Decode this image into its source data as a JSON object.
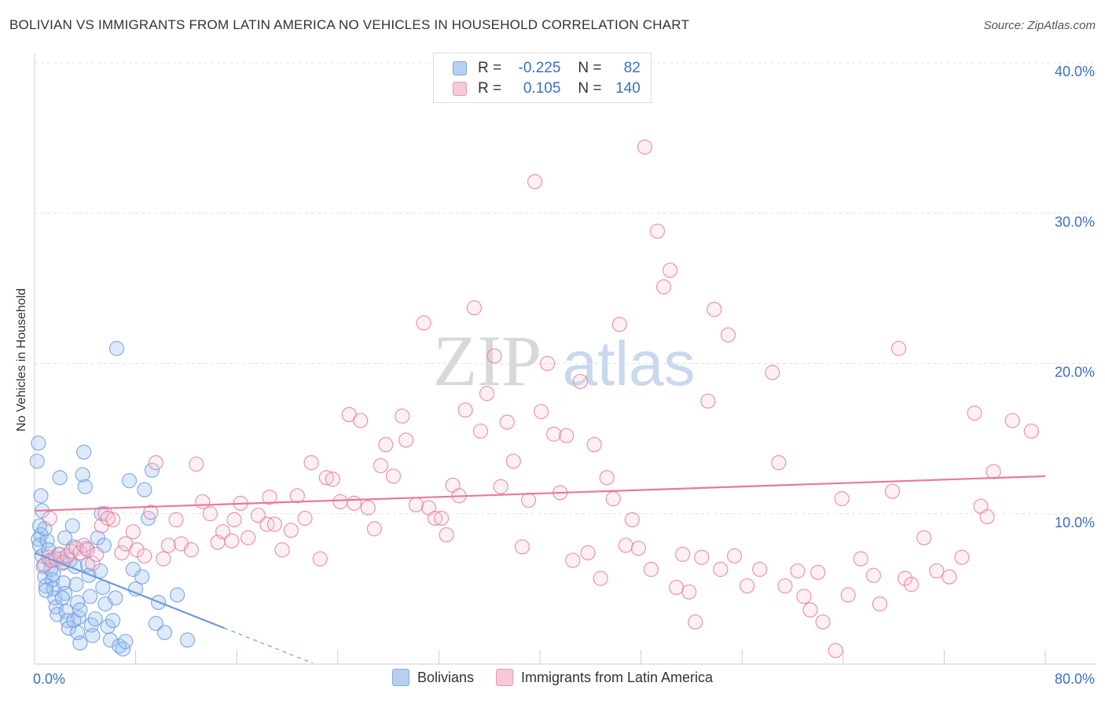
{
  "header": {
    "title": "BOLIVIAN VS IMMIGRANTS FROM LATIN AMERICA NO VEHICLES IN HOUSEHOLD CORRELATION CHART",
    "source": "Source: ZipAtlas.com"
  },
  "watermark": {
    "part1": "ZIP",
    "part2": "atlas"
  },
  "legend": {
    "r_label": "R =",
    "n_label": "N =",
    "rows": [
      {
        "r": "-0.225",
        "n": "82",
        "fill": "#b7d0f0",
        "stroke": "#7fa8e0"
      },
      {
        "r": "0.105",
        "n": "140",
        "fill": "#f8c8d7",
        "stroke": "#e89ab3"
      }
    ]
  },
  "bottom_legend": [
    {
      "label": "Bolivians",
      "fill": "#b7d0f0",
      "stroke": "#7fa8e0"
    },
    {
      "label": "Immigrants from Latin America",
      "fill": "#f8c8d7",
      "stroke": "#e89ab3"
    }
  ],
  "chart_data": {
    "type": "scatter",
    "ylabel": "No Vehicles in Household",
    "xlim": [
      0,
      80
    ],
    "ylim": [
      0,
      40
    ],
    "x_tick_labels": [
      "0.0%",
      "80.0%"
    ],
    "y_ticks": [
      10,
      20,
      30,
      40
    ],
    "y_tick_labels": [
      "10.0%",
      "20.0%",
      "30.0%",
      "40.0%"
    ],
    "grid": true,
    "series": [
      {
        "name": "Bolivians",
        "color": "#6a9bdc",
        "fill": "rgba(160,196,240,0.35)",
        "trend": {
          "x0": 0,
          "y0": 7.4,
          "x1": 15,
          "y1": 2.4,
          "dash_to_x": 22
        },
        "points": [
          [
            0.3,
            14.7
          ],
          [
            0.5,
            11.2
          ],
          [
            0.6,
            10.2
          ],
          [
            0.4,
            9.2
          ],
          [
            0.5,
            8.6
          ],
          [
            0.3,
            8.3
          ],
          [
            0.4,
            7.9
          ],
          [
            0.6,
            7.2
          ],
          [
            0.7,
            6.5
          ],
          [
            0.8,
            5.8
          ],
          [
            0.9,
            5.2
          ],
          [
            1.0,
            8.2
          ],
          [
            1.1,
            7.6
          ],
          [
            1.2,
            6.9
          ],
          [
            1.3,
            6.3
          ],
          [
            1.4,
            5.6
          ],
          [
            1.5,
            5.0
          ],
          [
            1.6,
            4.4
          ],
          [
            1.7,
            3.8
          ],
          [
            1.8,
            3.3
          ],
          [
            2.0,
            12.4
          ],
          [
            2.1,
            7.0
          ],
          [
            2.2,
            6.7
          ],
          [
            2.3,
            5.4
          ],
          [
            2.4,
            4.7
          ],
          [
            2.5,
            3.5
          ],
          [
            2.6,
            2.9
          ],
          [
            2.7,
            2.4
          ],
          [
            3.0,
            9.2
          ],
          [
            3.1,
            7.8
          ],
          [
            3.2,
            6.5
          ],
          [
            3.3,
            5.3
          ],
          [
            3.4,
            4.1
          ],
          [
            3.5,
            3.1
          ],
          [
            3.6,
            1.4
          ],
          [
            3.1,
            2.9
          ],
          [
            2.8,
            6.9
          ],
          [
            1.9,
            7.3
          ],
          [
            2.4,
            8.4
          ],
          [
            0.8,
            9.0
          ],
          [
            3.8,
            12.6
          ],
          [
            3.9,
            14.1
          ],
          [
            4.0,
            11.8
          ],
          [
            4.1,
            7.7
          ],
          [
            4.2,
            6.6
          ],
          [
            4.3,
            5.9
          ],
          [
            4.4,
            4.5
          ],
          [
            4.5,
            2.6
          ],
          [
            4.6,
            1.9
          ],
          [
            5.0,
            8.4
          ],
          [
            5.2,
            6.2
          ],
          [
            5.4,
            5.1
          ],
          [
            5.6,
            4.0
          ],
          [
            5.8,
            2.5
          ],
          [
            6.0,
            1.6
          ],
          [
            5.3,
            10.0
          ],
          [
            5.5,
            7.9
          ],
          [
            6.4,
            4.4
          ],
          [
            6.7,
            1.2
          ],
          [
            7.0,
            1.0
          ],
          [
            6.5,
            21.0
          ],
          [
            7.5,
            12.2
          ],
          [
            7.8,
            6.3
          ],
          [
            8.0,
            5.0
          ],
          [
            8.5,
            5.8
          ],
          [
            9.0,
            9.7
          ],
          [
            9.3,
            12.9
          ],
          [
            9.6,
            2.7
          ],
          [
            9.8,
            4.1
          ],
          [
            8.7,
            11.6
          ],
          [
            11.3,
            4.6
          ],
          [
            10.3,
            2.1
          ],
          [
            12.1,
            1.6
          ],
          [
            3.6,
            3.6
          ],
          [
            4.8,
            3.0
          ],
          [
            1.5,
            6.0
          ],
          [
            2.2,
            4.4
          ],
          [
            0.9,
            4.9
          ],
          [
            3.4,
            2.1
          ],
          [
            6.2,
            2.9
          ],
          [
            7.2,
            1.5
          ],
          [
            0.2,
            13.5
          ]
        ]
      },
      {
        "name": "Immigrants from Latin America",
        "color": "#e8789c",
        "fill": "rgba(248,200,215,0.28)",
        "trend": {
          "x0": 0,
          "y0": 10.2,
          "x1": 80,
          "y1": 12.5
        },
        "points": [
          [
            0.8,
            6.6
          ],
          [
            1.1,
            7.1
          ],
          [
            1.4,
            6.9
          ],
          [
            1.7,
            7.0
          ],
          [
            2.0,
            7.3
          ],
          [
            2.3,
            6.8
          ],
          [
            2.6,
            7.2
          ],
          [
            2.9,
            7.5
          ],
          [
            3.3,
            7.7
          ],
          [
            3.6,
            7.4
          ],
          [
            3.9,
            7.9
          ],
          [
            4.2,
            7.6
          ],
          [
            4.6,
            6.7
          ],
          [
            4.9,
            7.3
          ],
          [
            5.3,
            9.2
          ],
          [
            5.6,
            10.0
          ],
          [
            6.2,
            9.6
          ],
          [
            6.9,
            7.4
          ],
          [
            7.2,
            8.0
          ],
          [
            7.8,
            8.8
          ],
          [
            8.1,
            7.6
          ],
          [
            8.7,
            7.2
          ],
          [
            9.2,
            10.1
          ],
          [
            9.6,
            13.4
          ],
          [
            10.2,
            7.0
          ],
          [
            10.6,
            7.9
          ],
          [
            11.2,
            9.6
          ],
          [
            11.6,
            8.0
          ],
          [
            12.4,
            7.6
          ],
          [
            12.8,
            13.3
          ],
          [
            13.3,
            10.8
          ],
          [
            13.9,
            10.0
          ],
          [
            14.5,
            8.1
          ],
          [
            14.9,
            8.8
          ],
          [
            15.6,
            8.2
          ],
          [
            15.8,
            9.6
          ],
          [
            16.3,
            10.7
          ],
          [
            16.9,
            8.4
          ],
          [
            17.7,
            9.9
          ],
          [
            18.4,
            9.3
          ],
          [
            18.6,
            11.1
          ],
          [
            19.0,
            9.3
          ],
          [
            19.6,
            7.6
          ],
          [
            20.3,
            8.9
          ],
          [
            20.8,
            11.2
          ],
          [
            21.4,
            9.7
          ],
          [
            21.9,
            13.4
          ],
          [
            22.6,
            7.0
          ],
          [
            23.1,
            12.4
          ],
          [
            23.6,
            12.3
          ],
          [
            24.2,
            10.8
          ],
          [
            24.9,
            16.6
          ],
          [
            25.3,
            10.7
          ],
          [
            25.8,
            16.2
          ],
          [
            26.4,
            10.4
          ],
          [
            26.9,
            9.0
          ],
          [
            27.4,
            13.2
          ],
          [
            27.8,
            14.6
          ],
          [
            28.4,
            12.5
          ],
          [
            29.1,
            16.5
          ],
          [
            29.4,
            14.9
          ],
          [
            30.2,
            10.6
          ],
          [
            30.8,
            22.7
          ],
          [
            31.2,
            10.4
          ],
          [
            31.7,
            9.7
          ],
          [
            32.2,
            9.7
          ],
          [
            32.6,
            8.6
          ],
          [
            33.1,
            11.9
          ],
          [
            33.6,
            11.2
          ],
          [
            34.1,
            16.9
          ],
          [
            34.8,
            23.7
          ],
          [
            35.3,
            15.5
          ],
          [
            35.8,
            18.0
          ],
          [
            36.4,
            20.5
          ],
          [
            36.9,
            11.8
          ],
          [
            37.4,
            16.1
          ],
          [
            37.9,
            13.5
          ],
          [
            38.6,
            7.8
          ],
          [
            39.1,
            10.9
          ],
          [
            39.6,
            32.1
          ],
          [
            40.1,
            16.8
          ],
          [
            40.6,
            20.0
          ],
          [
            41.1,
            15.3
          ],
          [
            41.6,
            11.4
          ],
          [
            42.1,
            15.2
          ],
          [
            42.6,
            6.9
          ],
          [
            43.2,
            18.8
          ],
          [
            43.8,
            7.4
          ],
          [
            44.3,
            14.6
          ],
          [
            44.8,
            5.7
          ],
          [
            45.3,
            12.4
          ],
          [
            45.8,
            11.0
          ],
          [
            46.3,
            22.6
          ],
          [
            46.8,
            7.9
          ],
          [
            47.3,
            9.6
          ],
          [
            47.8,
            7.7
          ],
          [
            48.3,
            34.4
          ],
          [
            48.8,
            6.3
          ],
          [
            49.3,
            28.8
          ],
          [
            49.8,
            25.1
          ],
          [
            50.3,
            26.2
          ],
          [
            50.8,
            5.1
          ],
          [
            51.3,
            7.3
          ],
          [
            51.8,
            4.8
          ],
          [
            52.3,
            2.8
          ],
          [
            52.8,
            7.1
          ],
          [
            53.3,
            17.5
          ],
          [
            53.8,
            23.6
          ],
          [
            54.3,
            6.3
          ],
          [
            54.9,
            21.9
          ],
          [
            55.4,
            7.2
          ],
          [
            56.4,
            5.2
          ],
          [
            57.4,
            6.3
          ],
          [
            58.4,
            19.4
          ],
          [
            58.9,
            13.4
          ],
          [
            59.4,
            5.2
          ],
          [
            60.4,
            6.2
          ],
          [
            60.9,
            4.5
          ],
          [
            61.4,
            3.6
          ],
          [
            62.4,
            2.8
          ],
          [
            63.4,
            0.9
          ],
          [
            63.9,
            11.0
          ],
          [
            64.4,
            4.6
          ],
          [
            65.4,
            7.0
          ],
          [
            66.4,
            5.9
          ],
          [
            66.9,
            4.0
          ],
          [
            67.9,
            11.5
          ],
          [
            68.4,
            21.0
          ],
          [
            68.9,
            5.7
          ],
          [
            69.4,
            5.3
          ],
          [
            70.4,
            8.4
          ],
          [
            71.4,
            6.2
          ],
          [
            72.4,
            5.8
          ],
          [
            73.4,
            7.1
          ],
          [
            74.4,
            16.7
          ],
          [
            74.9,
            10.5
          ],
          [
            75.4,
            9.8
          ],
          [
            75.9,
            12.8
          ],
          [
            77.4,
            16.2
          ],
          [
            78.9,
            15.5
          ],
          [
            62.0,
            6.1
          ],
          [
            1.2,
            9.7
          ],
          [
            5.8,
            9.7
          ]
        ]
      }
    ]
  }
}
